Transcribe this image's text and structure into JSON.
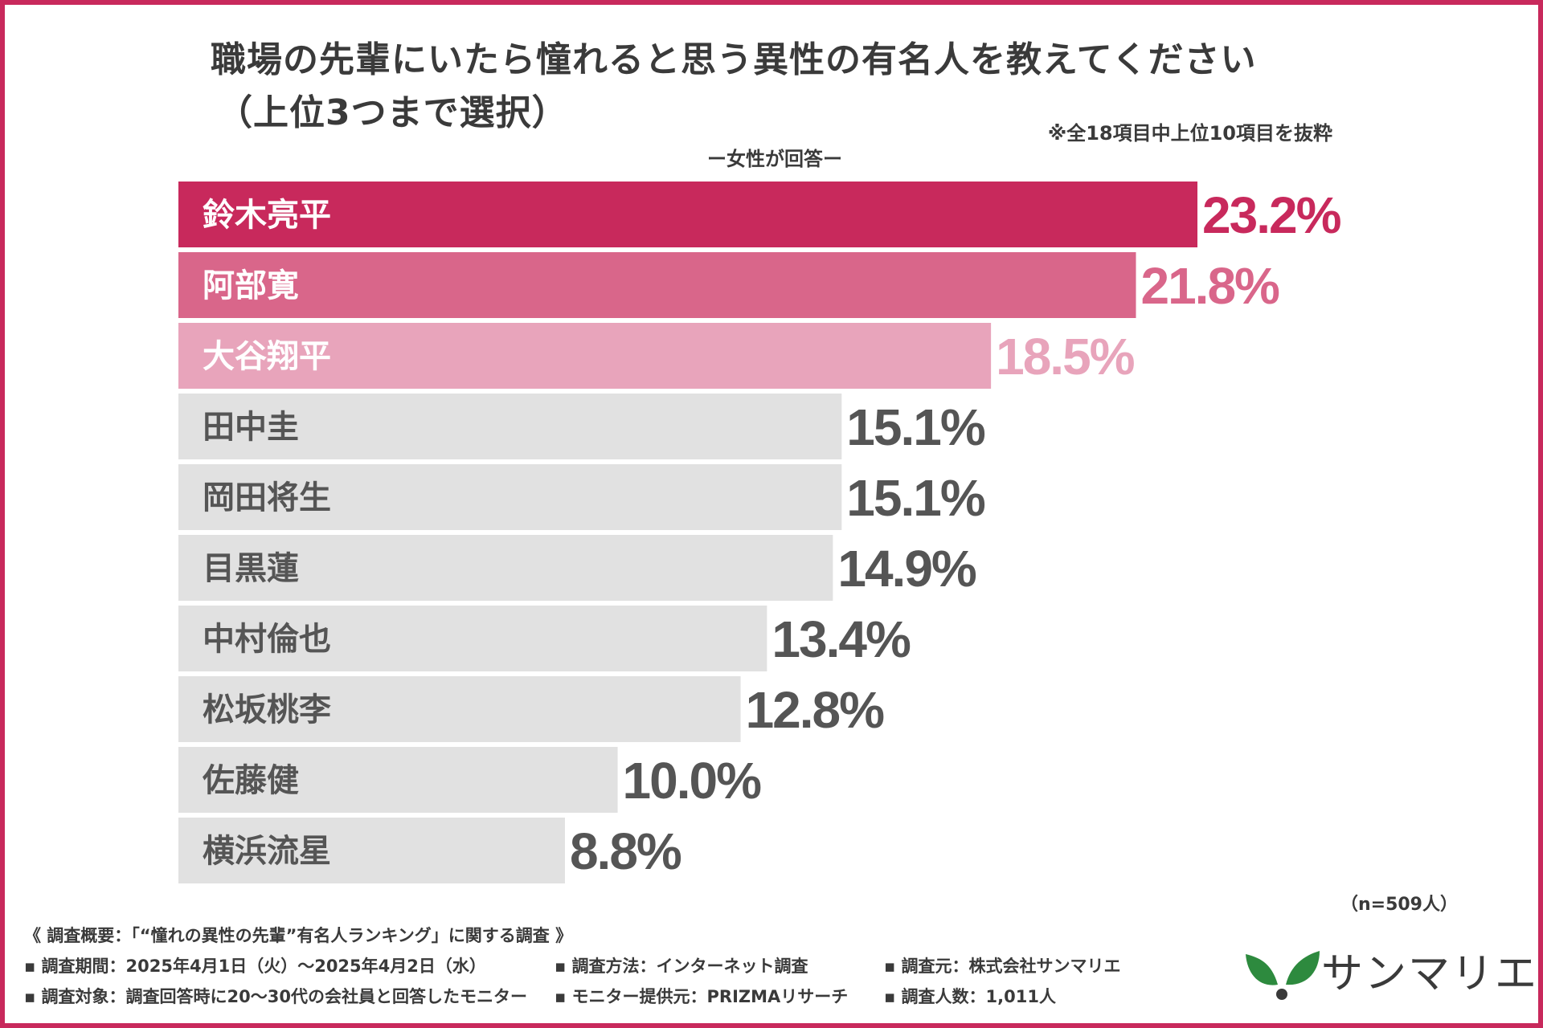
{
  "title": {
    "line1": "職場の先輩にいたら憧れると思う異性の有名人を教えてください",
    "line2": "（上位3つまで選択）"
  },
  "note": "※全18項目中上位10項目を抜粋",
  "subtitle": "ー女性が回答ー",
  "sample_size": "（n=509人）",
  "chart_data": {
    "type": "bar",
    "orientation": "horizontal",
    "categories": [
      "鈴木亮平",
      "阿部寛",
      "大谷翔平",
      "田中圭",
      "岡田将生",
      "目黒蓮",
      "中村倫也",
      "松坂桃李",
      "佐藤健",
      "横浜流星"
    ],
    "values": [
      23.2,
      21.8,
      18.5,
      15.1,
      15.1,
      14.9,
      13.4,
      12.8,
      10.0,
      8.8
    ],
    "value_labels": [
      "23.2%",
      "21.8%",
      "18.5%",
      "15.1%",
      "15.1%",
      "14.9%",
      "13.4%",
      "12.8%",
      "10.0%",
      "8.8%"
    ],
    "unit": "%",
    "xlim": [
      0,
      23.2
    ],
    "grid": false,
    "bar_colors": [
      "#c8295c",
      "#d9668a",
      "#e8a4bb",
      "#e1e1e1",
      "#e1e1e1",
      "#e1e1e1",
      "#e1e1e1",
      "#e1e1e1",
      "#e1e1e1",
      "#e1e1e1"
    ],
    "label_colors": [
      "#ffffff",
      "#ffffff",
      "#ffffff",
      "#555555",
      "#555555",
      "#555555",
      "#555555",
      "#555555",
      "#555555",
      "#555555"
    ],
    "value_colors": [
      "#c8295c",
      "#d9668a",
      "#e8a4bb",
      "#555555",
      "#555555",
      "#555555",
      "#555555",
      "#555555",
      "#555555",
      "#555555"
    ]
  },
  "survey": {
    "heading": "《 調査概要：「“憧れの異性の先輩”有名人ランキング」に関する調査 》",
    "period": "▪ 調査期間：2025年4月1日（火）～2025年4月2日（水）",
    "method": "▪ 調査方法：インターネット調査",
    "organizer": "▪ 調査元：株式会社サンマリエ",
    "target": "▪ 調査対象：調査回答時に20～30代の会社員と回答したモニター",
    "provider": "▪ モニター提供元：PRIZMAリサーチ",
    "respondents": "▪ 調査人数：1,011人"
  },
  "logo": {
    "text": "サンマリエ",
    "icon": "leaf-logo-icon",
    "leaf_color": "#2d8a3e",
    "dot_color": "#3a3a3a"
  }
}
